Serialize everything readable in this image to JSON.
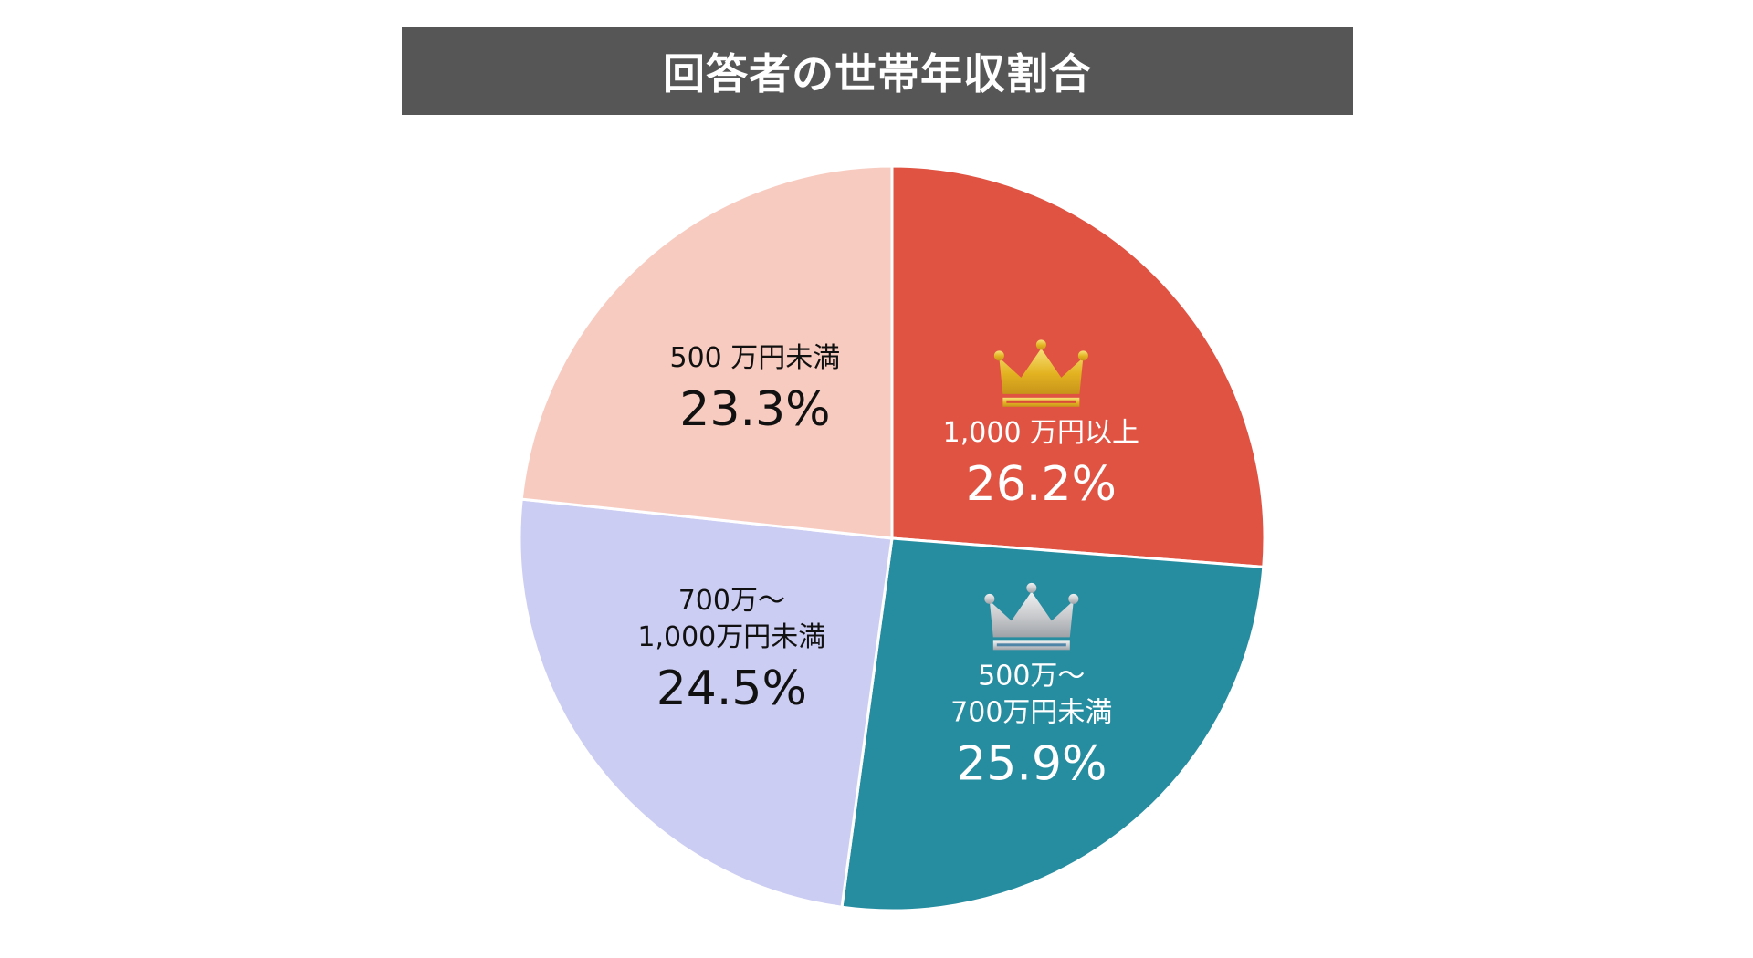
{
  "chart_data": {
    "type": "pie",
    "title": "回答者の世帯年収割合",
    "unit": "%",
    "slices": [
      {
        "label_lines": [
          "1,000 万円以上"
        ],
        "value": 26.2,
        "value_text": "26.2%",
        "color": "#e05343",
        "text_color": "#ffffff",
        "badge": "gold-crown-icon"
      },
      {
        "label_lines": [
          "500万～",
          "700万円未満"
        ],
        "value": 25.9,
        "value_text": "25.9%",
        "color": "#268da1",
        "text_color": "#ffffff",
        "badge": "silver-crown-icon"
      },
      {
        "label_lines": [
          "700万～",
          "1,000万円未満"
        ],
        "value": 24.5,
        "value_text": "24.5%",
        "color": "#cccdf2",
        "text_color": "#111111",
        "badge": null
      },
      {
        "label_lines": [
          "500 万円未満"
        ],
        "value": 23.3,
        "value_text": "23.3%",
        "color": "#f8cbc0",
        "text_color": "#111111",
        "badge": null
      }
    ],
    "start_angle_deg": 0,
    "direction": "clockwise",
    "legend": "none",
    "slice_border_color": "#ffffff"
  }
}
